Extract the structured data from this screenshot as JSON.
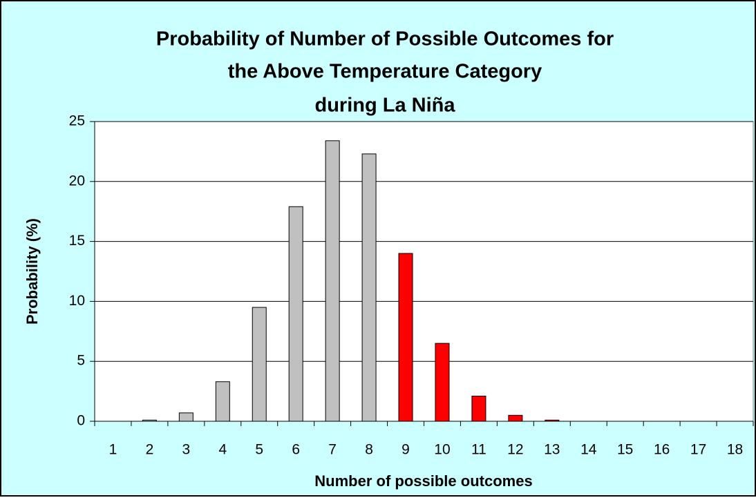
{
  "chart_data": {
    "type": "bar",
    "title": [
      "Probability of Number of Possible Outcomes for",
      "the Above Temperature Category",
      "during La Niña"
    ],
    "x_label": "Number of possible outcomes",
    "y_label": "Probability (%)",
    "categories": [
      "1",
      "2",
      "3",
      "4",
      "5",
      "6",
      "7",
      "8",
      "9",
      "10",
      "11",
      "12",
      "13",
      "14",
      "15",
      "16",
      "17",
      "18"
    ],
    "values": [
      0,
      0.1,
      0.7,
      3.3,
      9.5,
      17.9,
      23.4,
      22.3,
      14.0,
      6.5,
      2.1,
      0.5,
      0.1,
      0,
      0,
      0,
      0,
      0
    ],
    "colors": [
      "#c0c0c0",
      "#c0c0c0",
      "#c0c0c0",
      "#c0c0c0",
      "#c0c0c0",
      "#c0c0c0",
      "#c0c0c0",
      "#c0c0c0",
      "#ff0000",
      "#ff0000",
      "#ff0000",
      "#ff0000",
      "#ff0000",
      "#ff0000",
      "#ff0000",
      "#ff0000",
      "#ff0000",
      "#ff0000"
    ],
    "ylim": [
      0,
      25
    ],
    "yticks": [
      0,
      5,
      10,
      15,
      20,
      25
    ],
    "grid": true
  }
}
